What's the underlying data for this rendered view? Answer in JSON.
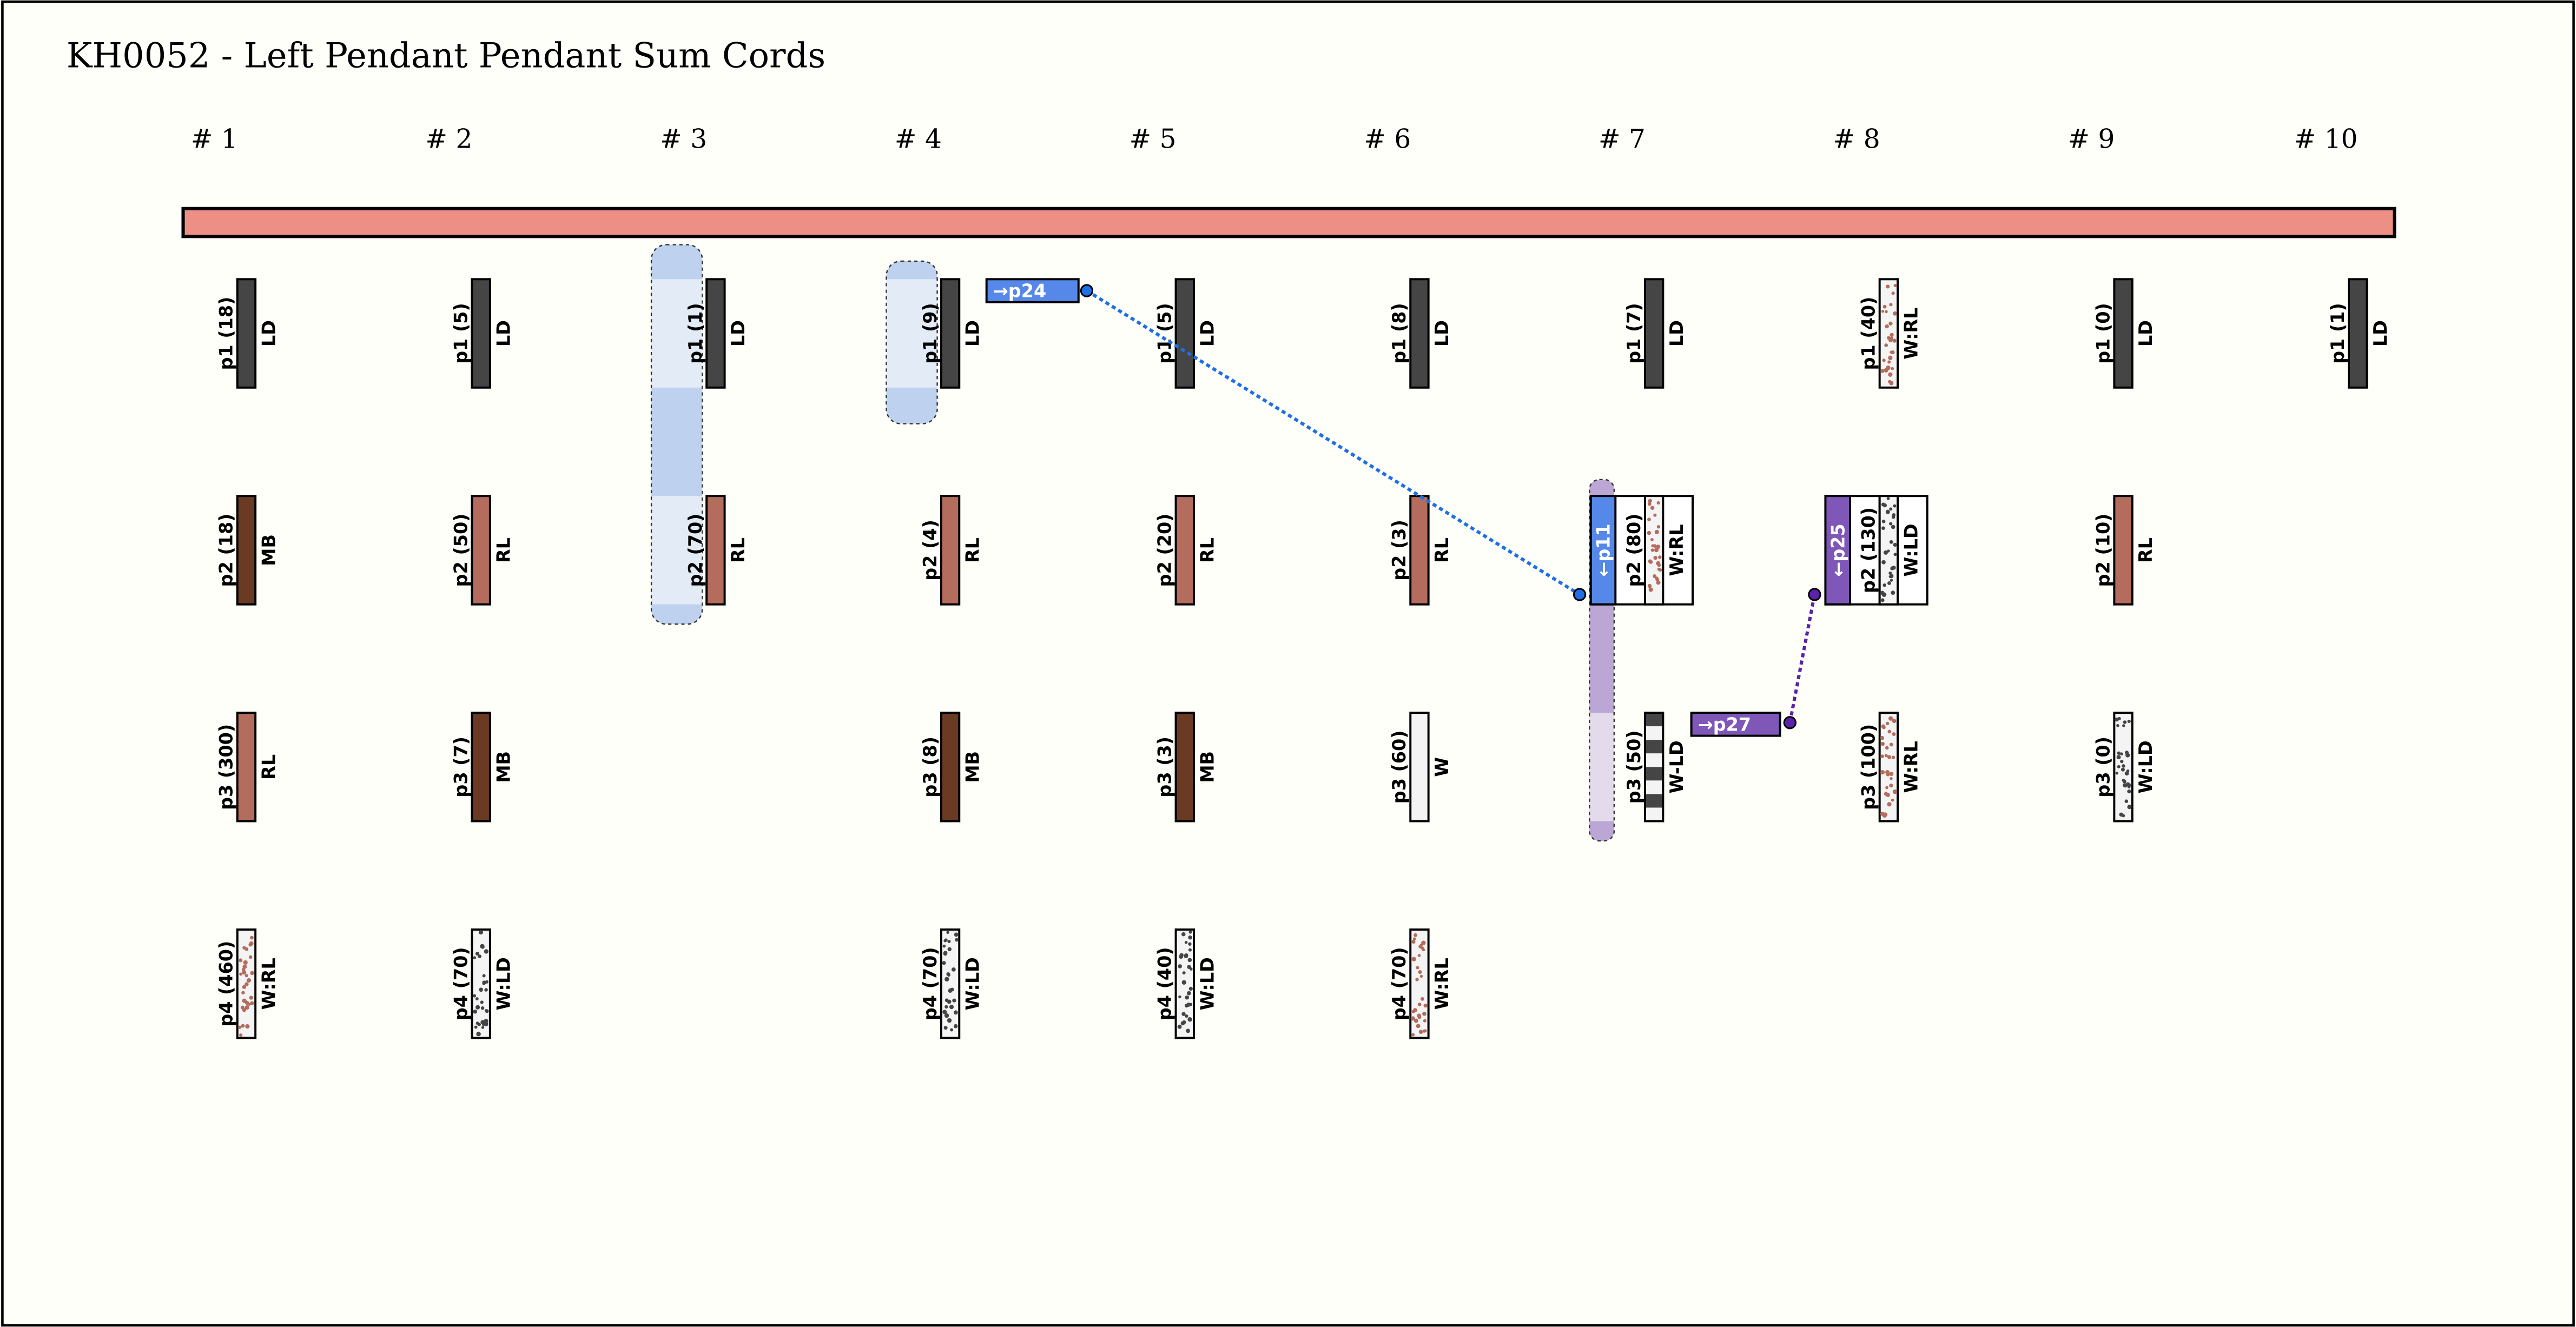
{
  "title": "KH0052 - Left Pendant Pendant Sum Cords",
  "colors": {
    "background": "#fffffa",
    "primary_cord": "#ee8f85",
    "LD": "#454545",
    "MB": "#6a3a22",
    "RL": "#b46c5c",
    "W": "#f4f4f4",
    "dot_RL": "#b46c5c",
    "dot_LD": "#454545",
    "link_blue": "#1f6ee8",
    "tag_blue": "#5588e8",
    "link_purple": "#5a22a8",
    "tag_purple": "#7e57b8",
    "group_blue_dark": "#bed2f0",
    "group_blue_light": "#e2ebf6",
    "group_purple_dark": "#bba6d6",
    "group_purple_light": "#e3dbec"
  },
  "columns": [
    {
      "label": "# 1",
      "cords": [
        {
          "name": "p1 (18)",
          "code": "LD",
          "fill": "LD"
        },
        {
          "name": "p2 (18)",
          "code": "MB",
          "fill": "MB"
        },
        {
          "name": "p3 (300)",
          "code": "RL",
          "fill": "RL"
        },
        {
          "name": "p4 (460)",
          "code": "W:RL",
          "fill": "W:RL"
        }
      ]
    },
    {
      "label": "# 2",
      "cords": [
        {
          "name": "p1 (5)",
          "code": "LD",
          "fill": "LD"
        },
        {
          "name": "p2 (50)",
          "code": "RL",
          "fill": "RL"
        },
        {
          "name": "p3 (7)",
          "code": "MB",
          "fill": "MB"
        },
        {
          "name": "p4 (70)",
          "code": "W:LD",
          "fill": "W:LD"
        }
      ]
    },
    {
      "label": "# 3",
      "group": "blue",
      "cords": [
        {
          "name": "p1 (1)",
          "code": "LD",
          "fill": "LD"
        },
        {
          "name": "p2 (70)",
          "code": "RL",
          "fill": "RL"
        }
      ]
    },
    {
      "label": "# 4",
      "group": "blue",
      "cords": [
        {
          "name": "p1 (9)",
          "code": "LD",
          "fill": "LD"
        },
        {
          "name": "p2 (4)",
          "code": "RL",
          "fill": "RL"
        },
        {
          "name": "p3 (8)",
          "code": "MB",
          "fill": "MB"
        },
        {
          "name": "p4 (70)",
          "code": "W:LD",
          "fill": "W:LD"
        }
      ]
    },
    {
      "label": "# 5",
      "cords": [
        {
          "name": "p1 (5)",
          "code": "LD",
          "fill": "LD"
        },
        {
          "name": "p2 (20)",
          "code": "RL",
          "fill": "RL"
        },
        {
          "name": "p3 (3)",
          "code": "MB",
          "fill": "MB"
        },
        {
          "name": "p4 (40)",
          "code": "W:LD",
          "fill": "W:LD"
        }
      ]
    },
    {
      "label": "# 6",
      "cords": [
        {
          "name": "p1 (8)",
          "code": "LD",
          "fill": "LD"
        },
        {
          "name": "p2 (3)",
          "code": "RL",
          "fill": "RL"
        },
        {
          "name": "p3 (60)",
          "code": "W",
          "fill": "W"
        },
        {
          "name": "p4 (70)",
          "code": "W:RL",
          "fill": "W:RL"
        }
      ]
    },
    {
      "label": "# 7",
      "group": "purple",
      "cords": [
        {
          "name": "p1 (7)",
          "code": "LD",
          "fill": "LD"
        },
        {
          "name": "p2 (80)",
          "code": "W:RL",
          "fill": "W:RL",
          "boxed": true,
          "tag": "←p11",
          "tag_color": "blue"
        },
        {
          "name": "p3 (50)",
          "code": "W-LD",
          "fill": "W-LD"
        }
      ]
    },
    {
      "label": "# 8",
      "cords": [
        {
          "name": "p1 (40)",
          "code": "W:RL",
          "fill": "W:RL"
        },
        {
          "name": "p2 (130)",
          "code": "W:LD",
          "fill": "W:LD",
          "boxed": true,
          "tag": "←p25",
          "tag_color": "purple"
        },
        {
          "name": "p3 (100)",
          "code": "W:RL",
          "fill": "W:RL"
        }
      ]
    },
    {
      "label": "# 9",
      "cords": [
        {
          "name": "p1 (0)",
          "code": "LD",
          "fill": "LD"
        },
        {
          "name": "p2 (10)",
          "code": "RL",
          "fill": "RL"
        },
        {
          "name": "p3 (0)",
          "code": "W:LD",
          "fill": "W:LD"
        }
      ]
    },
    {
      "label": "# 10",
      "cords": [
        {
          "name": "p1 (1)",
          "code": "LD",
          "fill": "LD"
        }
      ]
    }
  ],
  "links": [
    {
      "label": "→p24",
      "color": "blue"
    },
    {
      "label": "→p27",
      "color": "purple"
    }
  ]
}
